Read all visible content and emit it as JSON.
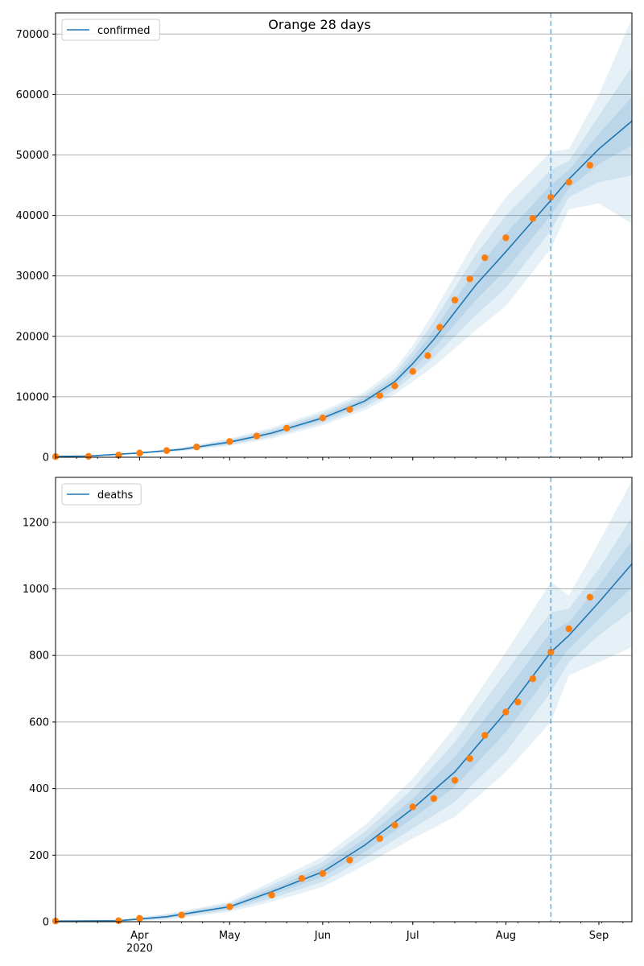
{
  "figure": {
    "title": "Orange 28 days"
  },
  "colors": {
    "line": "#1f77b4",
    "band": "#1f77b4",
    "points": "#ff7f0e",
    "grid": "#b0b0b0",
    "vline": "#1f77b4"
  },
  "chart_data": [
    {
      "type": "line",
      "legend": {
        "label": "confirmed",
        "placement": "top-left"
      },
      "grid": "horizontal",
      "x_range": [
        "2020-03-04",
        "2020-09-12"
      ],
      "ylim": [
        0,
        73500
      ],
      "yticks": [
        0,
        10000,
        20000,
        30000,
        40000,
        50000,
        60000,
        70000
      ],
      "x_major_ticks": [
        {
          "date": "2020-04-01",
          "label": "Apr",
          "sublabel": "2020"
        },
        {
          "date": "2020-05-01",
          "label": "May"
        },
        {
          "date": "2020-06-01",
          "label": "Jun"
        },
        {
          "date": "2020-07-01",
          "label": "Jul"
        },
        {
          "date": "2020-08-01",
          "label": "Aug"
        },
        {
          "date": "2020-09-01",
          "label": "Sep"
        }
      ],
      "vline_date": "2020-08-16",
      "model": {
        "x": [
          "2020-03-04",
          "2020-03-15",
          "2020-04-01",
          "2020-04-15",
          "2020-05-01",
          "2020-05-15",
          "2020-06-01",
          "2020-06-15",
          "2020-06-25",
          "2020-07-01",
          "2020-07-08",
          "2020-07-15",
          "2020-07-22",
          "2020-08-01",
          "2020-08-16",
          "2020-08-22",
          "2020-09-01",
          "2020-09-12"
        ],
        "y": [
          150,
          200,
          700,
          1300,
          2500,
          4000,
          6500,
          9300,
          12500,
          15500,
          19500,
          24000,
          28500,
          34000,
          42500,
          46000,
          51000,
          55600
        ],
        "band_widths": [
          [
            0,
            0,
            50,
            100,
            200,
            300,
            400,
            500,
            700,
            1000,
            1500,
            2000,
            2500,
            3000,
            2500,
            1500,
            2500,
            4000
          ],
          [
            0,
            0,
            100,
            200,
            400,
            600,
            800,
            1000,
            1400,
            2000,
            3000,
            4000,
            5000,
            6000,
            5000,
            3000,
            5500,
            9000
          ],
          [
            0,
            0,
            150,
            300,
            600,
            900,
            1200,
            1500,
            2100,
            3000,
            4500,
            6000,
            7500,
            9000,
            8000,
            5000,
            9000,
            17000
          ]
        ]
      },
      "observed": {
        "x": [
          "2020-03-04",
          "2020-03-15",
          "2020-03-25",
          "2020-04-01",
          "2020-04-10",
          "2020-04-20",
          "2020-05-01",
          "2020-05-10",
          "2020-05-20",
          "2020-06-01",
          "2020-06-10",
          "2020-06-20",
          "2020-06-25",
          "2020-07-01",
          "2020-07-06",
          "2020-07-10",
          "2020-07-15",
          "2020-07-20",
          "2020-07-25",
          "2020-08-01",
          "2020-08-10",
          "2020-08-16",
          "2020-08-22",
          "2020-08-29"
        ],
        "y": [
          100,
          150,
          350,
          700,
          1100,
          1700,
          2600,
          3500,
          4800,
          6500,
          7900,
          10200,
          11800,
          14200,
          16800,
          21500,
          26000,
          29500,
          33000,
          36300,
          39500,
          43000,
          45500,
          48300
        ]
      }
    },
    {
      "type": "line",
      "legend": {
        "label": "deaths",
        "placement": "top-left"
      },
      "grid": "horizontal",
      "x_range": [
        "2020-03-04",
        "2020-09-12"
      ],
      "ylim": [
        0,
        1335
      ],
      "yticks": [
        0,
        200,
        400,
        600,
        800,
        1000,
        1200
      ],
      "x_major_ticks": [
        {
          "date": "2020-04-01",
          "label": "Apr",
          "sublabel": "2020"
        },
        {
          "date": "2020-05-01",
          "label": "May"
        },
        {
          "date": "2020-06-01",
          "label": "Jun"
        },
        {
          "date": "2020-07-01",
          "label": "Jul"
        },
        {
          "date": "2020-08-01",
          "label": "Aug"
        },
        {
          "date": "2020-09-01",
          "label": "Sep"
        }
      ],
      "vline_date": "2020-08-16",
      "model": {
        "x": [
          "2020-03-04",
          "2020-03-25",
          "2020-04-10",
          "2020-05-01",
          "2020-05-15",
          "2020-06-01",
          "2020-06-15",
          "2020-07-01",
          "2020-07-15",
          "2020-08-01",
          "2020-08-16",
          "2020-08-22",
          "2020-09-01",
          "2020-09-12"
        ],
        "y": [
          2,
          3,
          15,
          45,
          90,
          150,
          230,
          340,
          450,
          630,
          810,
          860,
          960,
          1075
        ],
        "band_widths": [
          [
            0,
            1,
            3,
            5,
            10,
            15,
            20,
            30,
            45,
            60,
            60,
            40,
            50,
            70
          ],
          [
            0,
            2,
            6,
            10,
            20,
            30,
            40,
            60,
            90,
            120,
            120,
            80,
            100,
            140
          ],
          [
            0,
            3,
            9,
            15,
            30,
            45,
            60,
            90,
            135,
            180,
            210,
            120,
            180,
            250
          ]
        ]
      },
      "observed": {
        "x": [
          "2020-03-04",
          "2020-03-25",
          "2020-04-01",
          "2020-04-15",
          "2020-05-01",
          "2020-05-15",
          "2020-05-25",
          "2020-06-01",
          "2020-06-10",
          "2020-06-20",
          "2020-06-25",
          "2020-07-01",
          "2020-07-08",
          "2020-07-15",
          "2020-07-20",
          "2020-07-25",
          "2020-08-01",
          "2020-08-05",
          "2020-08-10",
          "2020-08-16",
          "2020-08-22",
          "2020-08-29"
        ],
        "y": [
          2,
          3,
          10,
          20,
          45,
          80,
          130,
          145,
          185,
          250,
          290,
          345,
          370,
          425,
          490,
          560,
          630,
          660,
          730,
          810,
          880,
          975
        ]
      }
    }
  ]
}
